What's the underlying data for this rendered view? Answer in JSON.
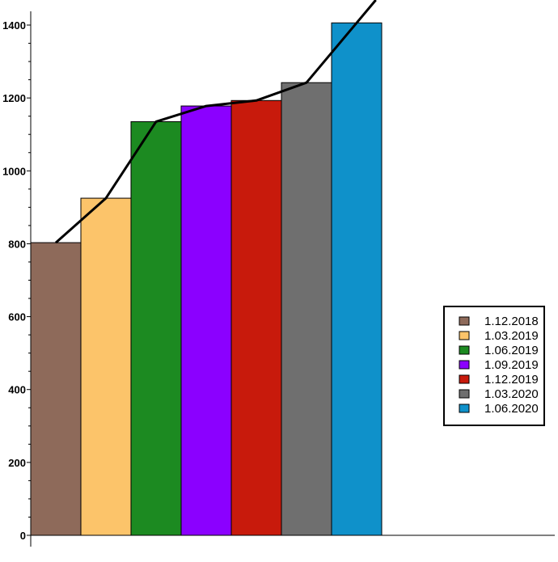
{
  "chart_data": {
    "type": "bar",
    "categories": [
      "1.12.2018",
      "1.03.2019",
      "1.06.2019",
      "1.09.2019",
      "1.12.2019",
      "1.03.2020",
      "1.06.2020"
    ],
    "values": [
      803,
      925,
      1135,
      1178,
      1193,
      1242,
      1406
    ],
    "colors": [
      "#8e6a5a",
      "#fcc46a",
      "#1c8a21",
      "#8b00ff",
      "#c81a0c",
      "#6f6f6f",
      "#0f91ca"
    ],
    "line_color": "#000000",
    "overlay_line": {
      "type": "line",
      "values": [
        803,
        925,
        1135,
        1178,
        1193,
        1242,
        1406
      ]
    },
    "ylim": [
      0,
      1430
    ],
    "yticks": [
      0,
      200,
      400,
      600,
      800,
      1000,
      1200,
      1400
    ],
    "grid": false,
    "legend": {
      "position": "right",
      "entries": [
        "1.12.2018",
        "1.03.2019",
        "1.06.2019",
        "1.09.2019",
        "1.12.2019",
        "1.03.2020",
        "1.06.2020"
      ]
    },
    "title": "",
    "xlabel": "",
    "ylabel": ""
  }
}
